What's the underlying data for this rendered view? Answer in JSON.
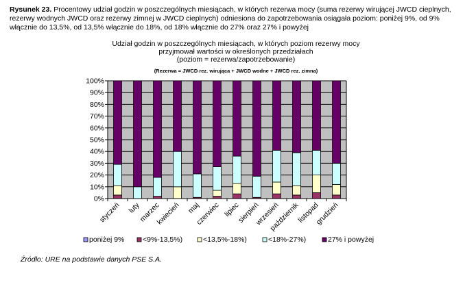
{
  "caption": {
    "label": "Rysunek 23.",
    "text": "Procentowy udział godzin w poszczególnych miesiącach, w których rezerwa mocy (suma rezerwy wirującej JWCD cieplnych, rezerwy wodnych JWCD oraz rezerwy zimnej w JWCD cieplnych) odniesiona do zapotrzebowania osiągała poziom: poniżej 9%, od 9% włącznie do 13,5%, od 13,5% włącznie do 18%, od 18% włącznie do 27% oraz 27% i powyżej"
  },
  "source": "Źródło: URE na podstawie danych PSE S.A.",
  "chart_data": {
    "type": "bar",
    "stacked": true,
    "title_lines": [
      "Udział godzin w poszczególnych miesiącach, w których poziom rezerwy mocy",
      "przyjmował wartości w określonych przedziałach",
      "(poziom = rezerwa/zapotrzebowanie)"
    ],
    "subtitle": "(Rezerwa = JWCD rez. wirująca + JWCD wodne + JWCD rez. zimna)",
    "categories": [
      "styczeń",
      "luty",
      "marzec",
      "kwiecień",
      "maj",
      "czerwiec",
      "lipiec",
      "sierpień",
      "wrzesień",
      "październik",
      "listopad",
      "grudzień"
    ],
    "y_ticks": [
      "0%",
      "10%",
      "20%",
      "30%",
      "40%",
      "50%",
      "60%",
      "70%",
      "80%",
      "90%",
      "100%"
    ],
    "ylim": [
      0,
      100
    ],
    "grid": true,
    "legend_position": "bottom",
    "series": [
      {
        "name": "poniżej 9%",
        "color": "#9999ff",
        "values": [
          0,
          0,
          0,
          0,
          0,
          0,
          0,
          0,
          0,
          0,
          0,
          0
        ]
      },
      {
        "name": "<9%-13,5%)",
        "color": "#993366",
        "values": [
          3,
          0,
          2,
          0,
          1,
          2,
          4,
          1,
          4,
          3,
          5,
          3
        ]
      },
      {
        "name": "<13,5%-18%)",
        "color": "#ffffcc",
        "values": [
          8,
          0,
          0,
          10,
          0,
          5,
          9,
          0,
          10,
          8,
          15,
          9
        ]
      },
      {
        "name": "<18%-27%)",
        "color": "#ccffff",
        "values": [
          18,
          10,
          16,
          30,
          20,
          20,
          23,
          18,
          27,
          28,
          21,
          18
        ]
      },
      {
        "name": "27% i powyżej",
        "color": "#660066",
        "values": [
          71,
          90,
          82,
          60,
          79,
          73,
          64,
          81,
          59,
          61,
          59,
          70
        ]
      }
    ]
  }
}
